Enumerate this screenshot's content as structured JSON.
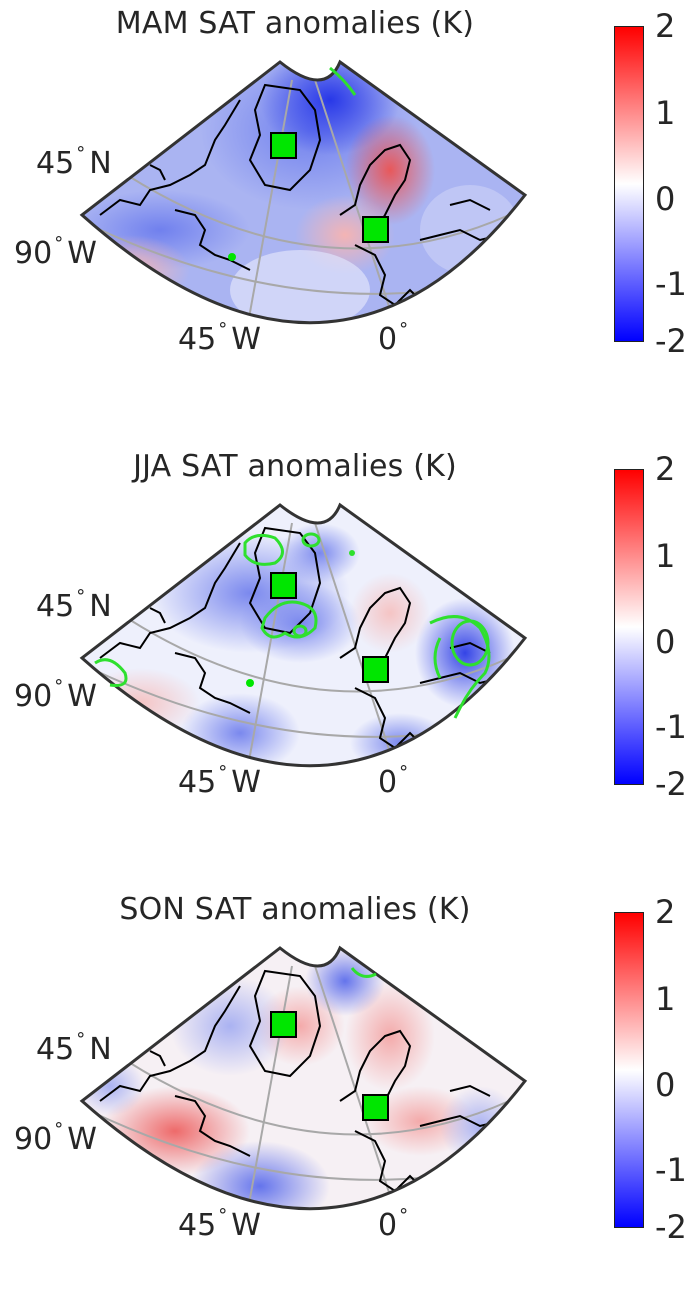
{
  "panels": [
    {
      "title": "MAM SAT anomalies (K)",
      "lat_label": "45",
      "lat_hemi": "N",
      "lon_west_label": "90",
      "lon_mid_label": "45",
      "lon_hemi": "W",
      "lon_zero_label": "0"
    },
    {
      "title": "JJA SAT anomalies (K)",
      "lat_label": "45",
      "lat_hemi": "N",
      "lon_west_label": "90",
      "lon_mid_label": "45",
      "lon_hemi": "W",
      "lon_zero_label": "0"
    },
    {
      "title": "SON SAT anomalies (K)",
      "lat_label": "45",
      "lat_hemi": "N",
      "lon_west_label": "90",
      "lon_mid_label": "45",
      "lon_hemi": "W",
      "lon_zero_label": "0"
    }
  ],
  "colorbar": {
    "ticks": [
      "2",
      "1",
      "0",
      "-1",
      "-2"
    ],
    "range": [
      -2,
      2
    ],
    "colors": {
      "max": "#ff0000",
      "mid": "#ffffff",
      "min": "#0000ff"
    }
  },
  "colors": {
    "marker": "#00e600",
    "significance_contour": "#2ee02e",
    "coastline": "#000000",
    "graticule": "#a8a8a8"
  }
}
